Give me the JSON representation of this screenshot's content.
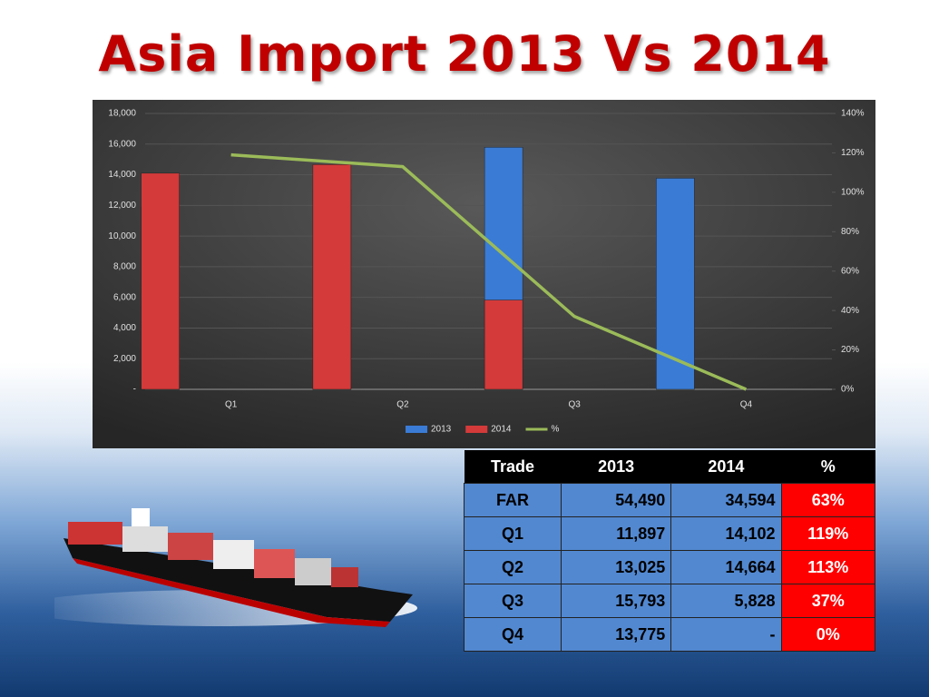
{
  "chart_data": {
    "type": "bar",
    "title": "Asia Import 2013 Vs 2014",
    "categories": [
      "Q1",
      "Q2",
      "Q3",
      "Q4"
    ],
    "series": [
      {
        "name": "2013",
        "color": "#3a7bd5",
        "values": [
          11897,
          13025,
          15793,
          13775
        ]
      },
      {
        "name": "2014",
        "color": "#d43a3a",
        "values": [
          14102,
          14664,
          5828,
          null
        ]
      },
      {
        "name": "%",
        "color": "#9bbb59",
        "type": "line",
        "axis": "y2",
        "values": [
          119,
          113,
          37,
          0
        ]
      }
    ],
    "ylim": [
      0,
      18000
    ],
    "yticks": [
      {
        "value": 0,
        "label": "-"
      },
      {
        "value": 2000,
        "label": "2,000"
      },
      {
        "value": 4000,
        "label": "4,000"
      },
      {
        "value": 6000,
        "label": "6,000"
      },
      {
        "value": 8000,
        "label": "8,000"
      },
      {
        "value": 10000,
        "label": "10,000"
      },
      {
        "value": 12000,
        "label": "12,000"
      },
      {
        "value": 14000,
        "label": "14,000"
      },
      {
        "value": 16000,
        "label": "16,000"
      },
      {
        "value": 18000,
        "label": "18,000"
      }
    ],
    "y2lim": [
      0,
      140
    ],
    "y2ticks": [
      {
        "value": 0,
        "label": "0%"
      },
      {
        "value": 20,
        "label": "20%"
      },
      {
        "value": 40,
        "label": "40%"
      },
      {
        "value": 60,
        "label": "60%"
      },
      {
        "value": 80,
        "label": "80%"
      },
      {
        "value": 100,
        "label": "100%"
      },
      {
        "value": 120,
        "label": "120%"
      },
      {
        "value": 140,
        "label": "140%"
      }
    ],
    "grid": true,
    "legend": "bottom"
  },
  "table": {
    "header": [
      "Trade",
      "2013",
      "2014",
      "%"
    ],
    "rows": [
      [
        "FAR",
        "54,490",
        "34,594",
        "63%"
      ],
      [
        "Q1",
        "11,897",
        "14,102",
        "119%"
      ],
      [
        "Q2",
        "13,025",
        "14,664",
        "113%"
      ],
      [
        "Q3",
        "15,793",
        "5,828",
        "37%"
      ],
      [
        "Q4",
        "13,775",
        "-",
        "0%"
      ]
    ]
  }
}
